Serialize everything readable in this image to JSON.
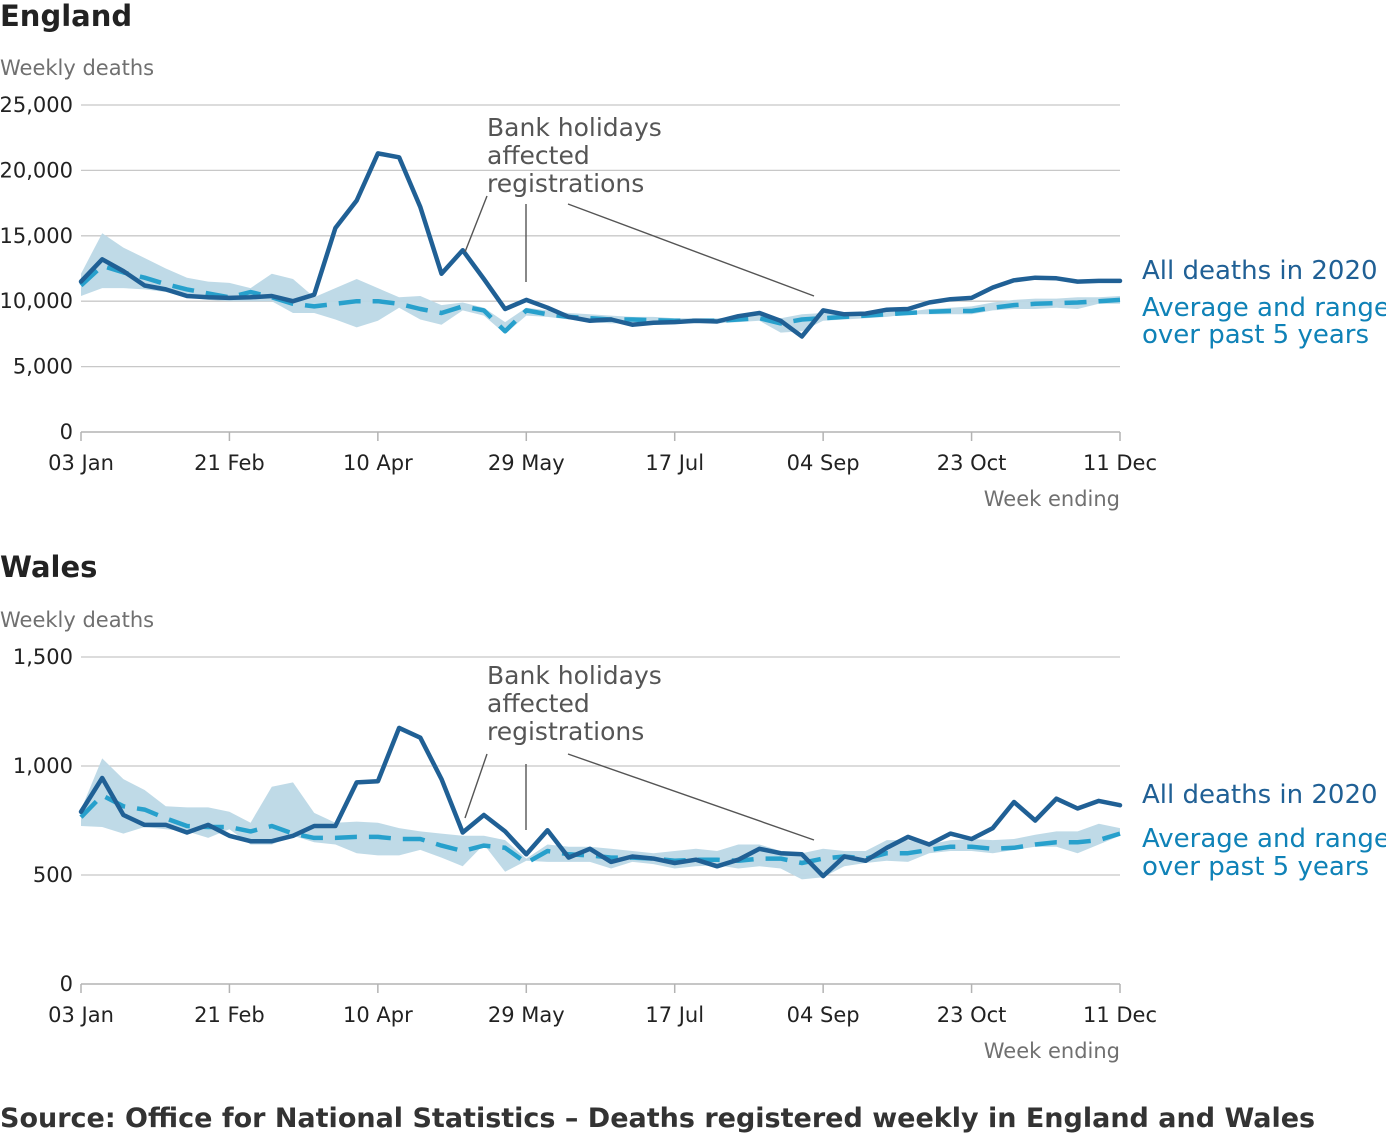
{
  "chart_data": [
    {
      "type": "line",
      "title": "England",
      "ylabel": "Weekly deaths",
      "xlabel": "Week ending",
      "ylim": [
        0,
        25000
      ],
      "yticks": [
        0,
        5000,
        10000,
        15000,
        20000,
        25000
      ],
      "ytick_labels": [
        "0",
        "5,000",
        "10,000",
        "15,000",
        "20,000",
        "25,000"
      ],
      "x_tick_weeks": [
        1,
        8,
        15,
        22,
        29,
        36,
        43,
        50
      ],
      "x_tick_labels": [
        "03 Jan",
        "21 Feb",
        "10 Apr",
        "29 May",
        "17 Jul",
        "04 Sep",
        "23 Oct",
        "11 Dec"
      ],
      "weeks": [
        1,
        2,
        3,
        4,
        5,
        6,
        7,
        8,
        9,
        10,
        11,
        12,
        13,
        14,
        15,
        16,
        17,
        18,
        19,
        20,
        21,
        22,
        23,
        24,
        25,
        26,
        27,
        28,
        29,
        30,
        31,
        32,
        33,
        34,
        35,
        36,
        37,
        38,
        39,
        40,
        41,
        42,
        43,
        44,
        45,
        46,
        47,
        48,
        49,
        50
      ],
      "series": [
        {
          "name": "All deaths in 2020",
          "values": [
            11500,
            13200,
            12300,
            11200,
            10900,
            10400,
            10300,
            10250,
            10300,
            10400,
            10000,
            10500,
            15600,
            17700,
            21300,
            21000,
            17200,
            12100,
            13900,
            11700,
            9400,
            10100,
            9500,
            8800,
            8500,
            8600,
            8200,
            8350,
            8400,
            8500,
            8450,
            8850,
            9100,
            8500,
            7300,
            9300,
            9000,
            9050,
            9350,
            9400,
            9900,
            10150,
            10250,
            11050,
            11600,
            11800,
            11750,
            11500,
            11550,
            11550
          ]
        },
        {
          "name": "Average and range over past 5 years",
          "values": [
            11200,
            12700,
            12200,
            11800,
            11300,
            10900,
            10600,
            10300,
            10700,
            10300,
            9800,
            9600,
            9800,
            10000,
            10000,
            9800,
            9400,
            9100,
            9600,
            9300,
            7700,
            9300,
            9000,
            8800,
            8700,
            8600,
            8600,
            8550,
            8500,
            8500,
            8500,
            8600,
            8700,
            8300,
            8600,
            8700,
            8800,
            8900,
            9000,
            9100,
            9200,
            9250,
            9250,
            9500,
            9700,
            9800,
            9850,
            9900,
            10000,
            10100
          ],
          "min": [
            10400,
            11000,
            11000,
            10900,
            10700,
            10300,
            10100,
            10000,
            10000,
            10000,
            9100,
            9100,
            8600,
            8000,
            8500,
            9500,
            8600,
            8200,
            9300,
            8900,
            7500,
            8900,
            8800,
            8600,
            8400,
            8300,
            8300,
            8300,
            8300,
            8300,
            8300,
            8400,
            8500,
            7600,
            7700,
            8500,
            8600,
            8700,
            8800,
            9000,
            9000,
            9000,
            9000,
            9300,
            9400,
            9400,
            9500,
            9400,
            9800,
            9800
          ],
          "max": [
            12100,
            15200,
            14100,
            13300,
            12500,
            11800,
            11500,
            11400,
            11000,
            12100,
            11700,
            10300,
            11000,
            11700,
            11000,
            10300,
            10400,
            9700,
            9900,
            9500,
            8400,
            9500,
            9300,
            9100,
            9000,
            8900,
            8800,
            8800,
            8700,
            8700,
            8700,
            8800,
            9000,
            8700,
            9000,
            9100,
            9100,
            9200,
            9200,
            9200,
            9400,
            9500,
            9600,
            9900,
            10100,
            10200,
            10200,
            10300,
            10300,
            10400
          ]
        }
      ],
      "annotation": [
        "Bank holidays",
        "affected",
        "registrations"
      ],
      "annotation_weeks": [
        20,
        22,
        35
      ]
    },
    {
      "type": "line",
      "title": "Wales",
      "ylabel": "Weekly deaths",
      "xlabel": "Week ending",
      "ylim": [
        0,
        1500
      ],
      "yticks": [
        0,
        500,
        1000,
        1500
      ],
      "ytick_labels": [
        "0",
        "500",
        "1,000",
        "1,500"
      ],
      "x_tick_weeks": [
        1,
        8,
        15,
        22,
        29,
        36,
        43,
        50
      ],
      "x_tick_labels": [
        "03 Jan",
        "21 Feb",
        "10 Apr",
        "29 May",
        "17 Jul",
        "04 Sep",
        "23 Oct",
        "11 Dec"
      ],
      "weeks": [
        1,
        2,
        3,
        4,
        5,
        6,
        7,
        8,
        9,
        10,
        11,
        12,
        13,
        14,
        15,
        16,
        17,
        18,
        19,
        20,
        21,
        22,
        23,
        24,
        25,
        26,
        27,
        28,
        29,
        30,
        31,
        32,
        33,
        34,
        35,
        36,
        37,
        38,
        39,
        40,
        41,
        42,
        43,
        44,
        45,
        46,
        47,
        48,
        49,
        50
      ],
      "series": [
        {
          "name": "All deaths in 2020",
          "values": [
            790,
            945,
            775,
            730,
            730,
            695,
            730,
            680,
            655,
            655,
            680,
            725,
            725,
            925,
            930,
            1175,
            1130,
            940,
            695,
            775,
            700,
            595,
            705,
            580,
            620,
            560,
            585,
            575,
            555,
            570,
            540,
            570,
            620,
            600,
            595,
            495,
            585,
            565,
            625,
            675,
            640,
            690,
            665,
            715,
            835,
            750,
            850,
            805,
            840,
            820
          ],
          "min": [
            725,
            720,
            690,
            720,
            710,
            700,
            670,
            710,
            640,
            640,
            680,
            650,
            640,
            600,
            590,
            590,
            615,
            580,
            540,
            640,
            515,
            565,
            560,
            560,
            560,
            530,
            560,
            550,
            530,
            540,
            545,
            530,
            540,
            530,
            480,
            490,
            540,
            555,
            565,
            560,
            600,
            610,
            610,
            600,
            615,
            630,
            630,
            600,
            640,
            680
          ]
        },
        {
          "name": "Average and range over past 5 years",
          "values": [
            765,
            865,
            815,
            800,
            760,
            725,
            720,
            720,
            700,
            725,
            690,
            670,
            670,
            675,
            675,
            665,
            665,
            635,
            610,
            635,
            625,
            555,
            610,
            595,
            590,
            580,
            580,
            575,
            565,
            570,
            570,
            565,
            575,
            575,
            555,
            575,
            585,
            575,
            600,
            600,
            615,
            630,
            630,
            620,
            625,
            640,
            650,
            650,
            660,
            690
          ],
          "max": [
            800,
            1035,
            940,
            890,
            815,
            810,
            810,
            790,
            740,
            905,
            925,
            785,
            740,
            745,
            740,
            715,
            700,
            690,
            680,
            680,
            660,
            575,
            640,
            630,
            630,
            620,
            610,
            600,
            610,
            620,
            610,
            640,
            640,
            610,
            600,
            620,
            610,
            610,
            660,
            660,
            640,
            660,
            665,
            660,
            665,
            685,
            700,
            700,
            735,
            715
          ]
        }
      ],
      "annotation": [
        "Bank holidays",
        "affected",
        "registrations"
      ],
      "annotation_weeks": [
        20,
        22,
        35
      ]
    }
  ],
  "legend": {
    "all_deaths": "All deaths in 2020",
    "average_line1": "Average and range",
    "average_line2": "over past 5 years"
  },
  "source": "Source: Office for National Statistics – Deaths registered weekly in England and Wales",
  "colors": {
    "all_deaths": "#206095",
    "average": "#27a0cc",
    "range": "#bcd8e6",
    "grid": "#c8c8c8",
    "annotation": "#555555"
  }
}
